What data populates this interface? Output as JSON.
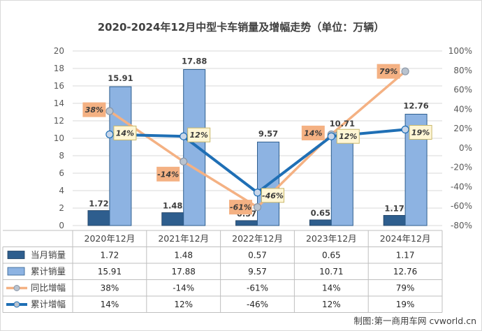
{
  "chart_data": {
    "type": "bar",
    "title": "2020-2024年12月中型卡车销量及增幅走势（单位：万辆）",
    "categories": [
      "2020年12月",
      "2021年12月",
      "2022年12月",
      "2023年12月",
      "2024年12月"
    ],
    "y_left": {
      "min": 0,
      "max": 20,
      "step": 2,
      "ticks": [
        "0",
        "2",
        "4",
        "6",
        "8",
        "10",
        "12",
        "14",
        "16",
        "18",
        "20"
      ]
    },
    "y_right": {
      "min": -80,
      "max": 100,
      "step": 20,
      "ticks": [
        "-80%",
        "-60%",
        "-40%",
        "-20%",
        "0%",
        "20%",
        "40%",
        "60%",
        "80%",
        "100%"
      ]
    },
    "grid": true,
    "legend": "bottom-table",
    "series": [
      {
        "name": "当月销量",
        "kind": "bar",
        "axis": "left",
        "color": "#2E5E8E",
        "values": [
          1.72,
          1.48,
          0.57,
          0.65,
          1.17
        ],
        "labels": [
          "1.72",
          "1.48",
          "0.57",
          "0.65",
          "1.17"
        ]
      },
      {
        "name": "累计销量",
        "kind": "bar",
        "axis": "left",
        "color": "#8DB3E2",
        "values": [
          15.91,
          17.88,
          9.57,
          10.71,
          12.76
        ],
        "labels": [
          "15.91",
          "17.88",
          "9.57",
          "10.71",
          "12.76"
        ]
      },
      {
        "name": "同比增幅",
        "kind": "line",
        "axis": "right",
        "color": "#F4B183",
        "values": [
          38,
          -14,
          -61,
          14,
          79
        ],
        "labels": [
          "38%",
          "-14%",
          "-61%",
          "14%",
          "79%"
        ]
      },
      {
        "name": "累计增幅",
        "kind": "line",
        "axis": "right",
        "color": "#1F6FB5",
        "values": [
          14,
          12,
          -46,
          12,
          19
        ],
        "labels": [
          "14%",
          "12%",
          "-46%",
          "12%",
          "19%"
        ]
      }
    ]
  },
  "watermark": "制图:第一商用车网 cvworld.cn"
}
